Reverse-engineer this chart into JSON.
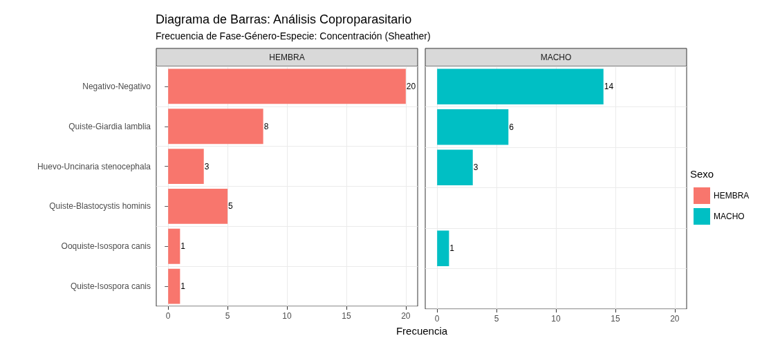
{
  "chart_data": [
    {
      "type": "bar",
      "orientation": "horizontal",
      "title": "Diagrama de Barras: Análisis Coproparasitario",
      "subtitle": "Frecuencia de Fase-Género-Especie: Concentración (Sheather)",
      "xlabel": "Frecuencia",
      "legend_title": "Sexo",
      "legend": "right",
      "grid": true,
      "data_labels": true,
      "categories": [
        "Negativo-Negativo",
        "Quiste-Giardia lamblia",
        "Huevo-Uncinaria stenocephala",
        "Quiste-Blastocystis hominis",
        "Ooquiste-Isospora canis",
        "Quiste-Isospora canis"
      ],
      "xlim": [
        -1,
        21
      ],
      "xticks": [
        0,
        5,
        10,
        15,
        20
      ],
      "series": [
        {
          "name": "HEMBRA",
          "color": "#f8766d",
          "values": [
            20,
            8,
            3,
            5,
            1,
            1
          ]
        }
      ]
    },
    {
      "type": "bar",
      "orientation": "horizontal",
      "legend": "right",
      "grid": true,
      "data_labels": true,
      "tick_labels": "x",
      "categories": [
        null,
        null,
        null,
        null,
        null,
        null
      ],
      "xlim": [
        -1,
        21
      ],
      "xticks": [
        0,
        5,
        10,
        15,
        20
      ],
      "series": [
        {
          "name": "MACHO",
          "color": "#00bfc4",
          "values": [
            14,
            6,
            3,
            null,
            1,
            null
          ]
        }
      ]
    }
  ]
}
